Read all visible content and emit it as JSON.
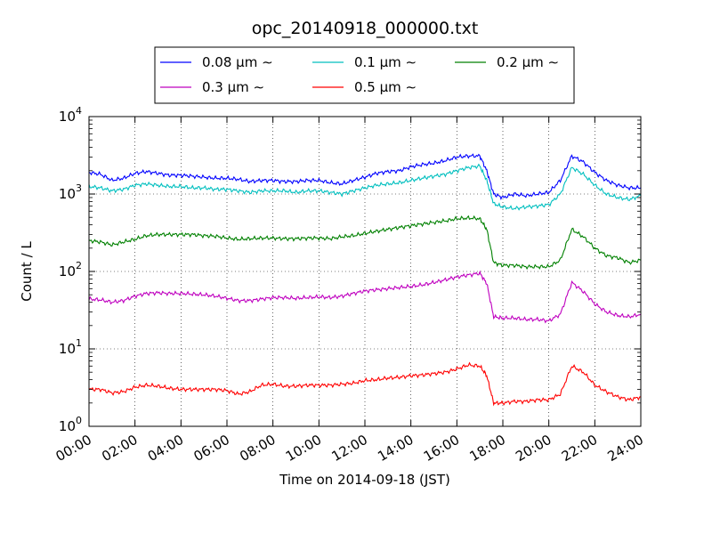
{
  "chart_data": {
    "type": "line",
    "title": "opc_20140918_000000.txt",
    "xlabel": "Time on 2014-09-18 (JST)",
    "ylabel": "Count / L",
    "xlim_hours": [
      0,
      24
    ],
    "ylog": true,
    "ylim": [
      1,
      10000
    ],
    "grid": true,
    "legend_position": "top-center",
    "x_tick_labels": [
      "00:00",
      "02:00",
      "04:00",
      "06:00",
      "08:00",
      "10:00",
      "12:00",
      "14:00",
      "16:00",
      "18:00",
      "20:00",
      "22:00",
      "24:00"
    ],
    "y_ticks": [
      {
        "value": 1,
        "base": "10",
        "exp": "0"
      },
      {
        "value": 10,
        "base": "10",
        "exp": "1"
      },
      {
        "value": 100,
        "base": "10",
        "exp": "2"
      },
      {
        "value": 1000,
        "base": "10",
        "exp": "3"
      },
      {
        "value": 10000,
        "base": "10",
        "exp": "4"
      }
    ],
    "series": [
      {
        "name": "0.08 μm ∼",
        "color": "#0000ff",
        "hours": [
          0,
          0.5,
          1,
          1.5,
          2,
          2.5,
          3,
          3.5,
          4,
          4.5,
          5,
          5.5,
          6,
          6.5,
          7,
          7.5,
          8,
          8.5,
          9,
          9.5,
          10,
          10.5,
          11,
          11.5,
          12,
          12.5,
          13,
          13.5,
          14,
          14.5,
          15,
          15.5,
          16,
          16.5,
          17,
          17.3,
          17.6,
          18,
          18.5,
          19,
          19.5,
          20,
          20.5,
          21,
          21.5,
          22,
          22.5,
          23,
          23.5,
          24
        ],
        "values": [
          1900,
          1800,
          1500,
          1600,
          1850,
          1950,
          1850,
          1750,
          1750,
          1700,
          1650,
          1600,
          1600,
          1550,
          1450,
          1500,
          1500,
          1450,
          1450,
          1500,
          1500,
          1400,
          1350,
          1500,
          1650,
          1850,
          1950,
          2000,
          2250,
          2400,
          2500,
          2700,
          3000,
          3100,
          3100,
          2000,
          1000,
          900,
          1000,
          950,
          1000,
          1050,
          1500,
          3100,
          2600,
          1900,
          1500,
          1300,
          1200,
          1200
        ]
      },
      {
        "name": "0.1 μm ∼",
        "color": "#00bfbf",
        "hours": [
          0,
          0.5,
          1,
          1.5,
          2,
          2.5,
          3,
          3.5,
          4,
          4.5,
          5,
          5.5,
          6,
          6.5,
          7,
          7.5,
          8,
          8.5,
          9,
          9.5,
          10,
          10.5,
          11,
          11.5,
          12,
          12.5,
          13,
          13.5,
          14,
          14.5,
          15,
          15.5,
          16,
          16.5,
          17,
          17.3,
          17.6,
          18,
          18.5,
          19,
          19.5,
          20,
          20.5,
          21,
          21.5,
          22,
          22.5,
          23,
          23.5,
          24
        ],
        "values": [
          1250,
          1200,
          1100,
          1150,
          1300,
          1350,
          1300,
          1250,
          1250,
          1200,
          1200,
          1150,
          1150,
          1100,
          1050,
          1100,
          1100,
          1100,
          1050,
          1100,
          1100,
          1050,
          1000,
          1100,
          1200,
          1300,
          1350,
          1400,
          1500,
          1600,
          1700,
          1800,
          2000,
          2200,
          2300,
          1500,
          750,
          680,
          650,
          680,
          700,
          730,
          1000,
          2200,
          1800,
          1300,
          1000,
          900,
          850,
          950
        ]
      },
      {
        "name": "0.2 μm ∼",
        "color": "#008000",
        "hours": [
          0,
          0.5,
          1,
          1.5,
          2,
          2.5,
          3,
          3.5,
          4,
          4.5,
          5,
          5.5,
          6,
          6.5,
          7,
          7.5,
          8,
          8.5,
          9,
          9.5,
          10,
          10.5,
          11,
          11.5,
          12,
          12.5,
          13,
          13.5,
          14,
          14.5,
          15,
          15.5,
          16,
          16.5,
          17,
          17.3,
          17.6,
          18,
          18.5,
          19,
          19.5,
          20,
          20.5,
          21,
          21.5,
          22,
          22.5,
          23,
          23.5,
          24
        ],
        "values": [
          250,
          240,
          220,
          240,
          260,
          290,
          300,
          300,
          300,
          300,
          290,
          285,
          270,
          260,
          265,
          270,
          270,
          265,
          265,
          270,
          270,
          265,
          280,
          290,
          310,
          330,
          350,
          370,
          390,
          410,
          430,
          450,
          480,
          490,
          480,
          350,
          130,
          120,
          120,
          115,
          115,
          115,
          140,
          350,
          280,
          200,
          160,
          150,
          130,
          140
        ]
      },
      {
        "name": "0.3 μm ∼",
        "color": "#bf00bf",
        "hours": [
          0,
          0.5,
          1,
          1.5,
          2,
          2.5,
          3,
          3.5,
          4,
          4.5,
          5,
          5.5,
          6,
          6.5,
          7,
          7.5,
          8,
          8.5,
          9,
          9.5,
          10,
          10.5,
          11,
          11.5,
          12,
          12.5,
          13,
          13.5,
          14,
          14.5,
          15,
          15.5,
          16,
          16.5,
          17,
          17.3,
          17.6,
          18,
          18.5,
          19,
          19.5,
          20,
          20.5,
          21,
          21.5,
          22,
          22.5,
          23,
          23.5,
          24
        ],
        "values": [
          44,
          43,
          40,
          42,
          48,
          52,
          53,
          52,
          52,
          51,
          50,
          48,
          45,
          42,
          42,
          44,
          46,
          46,
          45,
          46,
          47,
          46,
          48,
          52,
          56,
          58,
          60,
          62,
          64,
          67,
          72,
          78,
          85,
          90,
          95,
          70,
          26,
          25,
          25,
          24,
          24,
          23,
          28,
          72,
          55,
          38,
          30,
          27,
          26,
          28
        ]
      },
      {
        "name": "0.5 μm ∼",
        "color": "#ff0000",
        "hours": [
          0,
          0.5,
          1,
          1.5,
          2,
          2.5,
          3,
          3.5,
          4,
          4.5,
          5,
          5.5,
          6,
          6.5,
          7,
          7.5,
          8,
          8.5,
          9,
          9.5,
          10,
          10.5,
          11,
          11.5,
          12,
          12.5,
          13,
          13.5,
          14,
          14.5,
          15,
          15.5,
          16,
          16.5,
          17,
          17.3,
          17.6,
          18,
          18.5,
          19,
          19.5,
          20,
          20.5,
          21,
          21.5,
          22,
          22.5,
          23,
          23.5,
          24
        ],
        "values": [
          3.0,
          3.0,
          2.7,
          2.8,
          3.2,
          3.4,
          3.3,
          3.1,
          3.0,
          3.0,
          3.0,
          3.0,
          2.9,
          2.6,
          2.8,
          3.4,
          3.5,
          3.3,
          3.3,
          3.4,
          3.4,
          3.4,
          3.5,
          3.6,
          3.9,
          4.0,
          4.2,
          4.3,
          4.5,
          4.6,
          4.8,
          5.0,
          5.5,
          6.2,
          6.0,
          4.5,
          2.0,
          2.0,
          2.1,
          2.1,
          2.2,
          2.2,
          2.6,
          6.0,
          5.0,
          3.4,
          2.8,
          2.4,
          2.2,
          2.4
        ]
      }
    ]
  }
}
